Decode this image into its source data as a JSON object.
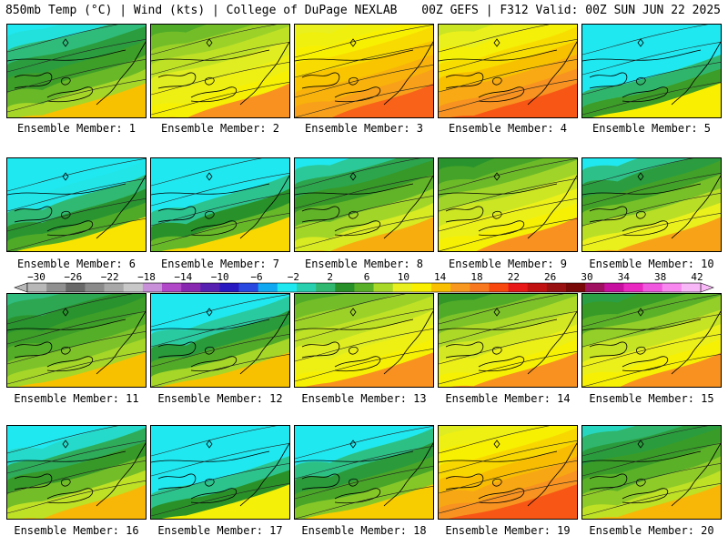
{
  "header": {
    "left": "850mb Temp (°C) | Wind (kts) | College of DuPage NEXLAB",
    "right": "00Z GEFS | F312 Valid: 00Z SUN JUN 22 2025"
  },
  "colorbar": {
    "ticks": [
      "−30",
      "−26",
      "−22",
      "−18",
      "−14",
      "−10",
      "−6",
      "−2",
      "2",
      "6",
      "10",
      "14",
      "18",
      "22",
      "26",
      "30",
      "34",
      "38",
      "42"
    ],
    "colors": [
      "#b8b8b8",
      "#909090",
      "#686868",
      "#8a8a8a",
      "#a8a8a8",
      "#c8c8c8",
      "#c890d8",
      "#b048c8",
      "#8828b0",
      "#5820b0",
      "#2818c0",
      "#2848e0",
      "#10a8f0",
      "#20e8f0",
      "#28d0b0",
      "#30b870",
      "#289028",
      "#58b028",
      "#a8d828",
      "#e8f020",
      "#f8f000",
      "#f8c000",
      "#f89820",
      "#f87820",
      "#f84810",
      "#e81818",
      "#c01010",
      "#981010",
      "#780808",
      "#a01060",
      "#c810a0",
      "#e828c0",
      "#f058e0",
      "#f888f0",
      "#f8b8f8"
    ]
  },
  "panels": [
    {
      "label": "Ensemble Member: 1",
      "warm": 0.3,
      "cool": 0.3
    },
    {
      "label": "Ensemble Member: 2",
      "warm": 0.55,
      "cool": 0.05
    },
    {
      "label": "Ensemble Member: 3",
      "warm": 0.8,
      "cool": 0.0
    },
    {
      "label": "Ensemble Member: 4",
      "warm": 0.85,
      "cool": 0.15
    },
    {
      "label": "Ensemble Member: 5",
      "warm": 0.1,
      "cool": 0.9
    },
    {
      "label": "Ensemble Member: 6",
      "warm": 0.15,
      "cool": 0.45
    },
    {
      "label": "Ensemble Member: 7",
      "warm": 0.2,
      "cool": 0.75
    },
    {
      "label": "Ensemble Member: 8",
      "warm": 0.4,
      "cool": 0.35
    },
    {
      "label": "Ensemble Member: 9",
      "warm": 0.55,
      "cool": 0.2
    },
    {
      "label": "Ensemble Member: 10",
      "warm": 0.45,
      "cool": 0.4
    },
    {
      "label": "Ensemble Member: 11",
      "warm": 0.3,
      "cool": 0.05
    },
    {
      "label": "Ensemble Member: 12",
      "warm": 0.3,
      "cool": 0.65
    },
    {
      "label": "Ensemble Member: 13",
      "warm": 0.55,
      "cool": 0.05
    },
    {
      "label": "Ensemble Member: 14",
      "warm": 0.55,
      "cool": 0.15
    },
    {
      "label": "Ensemble Member: 15",
      "warm": 0.55,
      "cool": 0.25
    },
    {
      "label": "Ensemble Member: 16",
      "warm": 0.35,
      "cool": 0.55
    },
    {
      "label": "Ensemble Member: 17",
      "warm": 0.05,
      "cool": 0.8
    },
    {
      "label": "Ensemble Member: 18",
      "warm": 0.25,
      "cool": 0.45
    },
    {
      "label": "Ensemble Member: 19",
      "warm": 0.85,
      "cool": 0.1
    },
    {
      "label": "Ensemble Member: 20",
      "warm": 0.35,
      "cool": 0.2
    }
  ]
}
